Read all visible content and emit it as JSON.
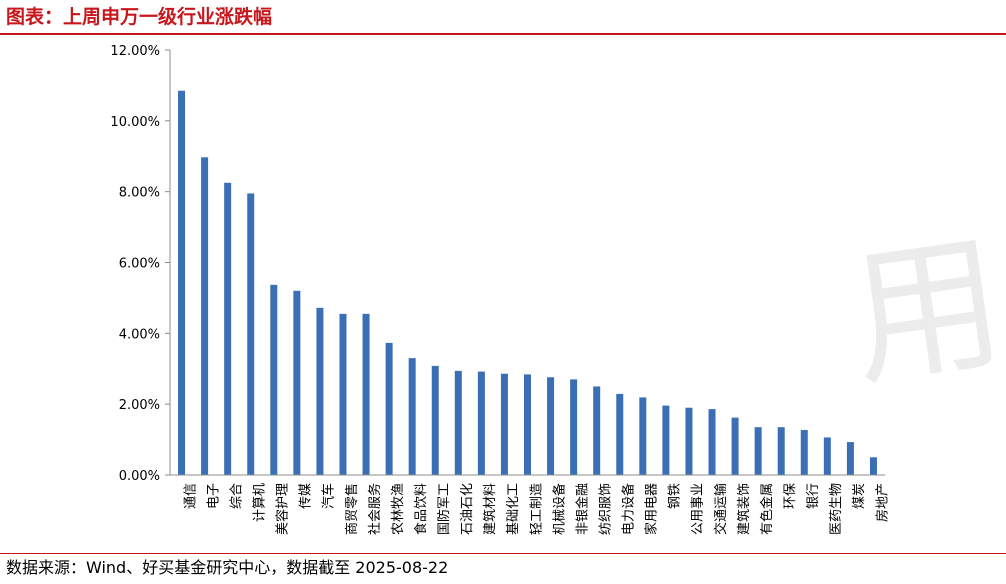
{
  "header": {
    "title": "图表：上周申万一级行业涨跌幅"
  },
  "footer": {
    "source": "数据来源：Wind、好买基金研究中心，数据截至  2025-08-22"
  },
  "watermark": {
    "text": "用"
  },
  "colors": {
    "bar": "#3a6fb5",
    "accent": "#c8161d",
    "axis": "#8c8c8c"
  },
  "chart_data": {
    "type": "bar",
    "title": "",
    "xlabel": "",
    "ylabel": "",
    "ylim": [
      0,
      12
    ],
    "yticks": [
      0,
      2,
      4,
      6,
      8,
      10,
      12
    ],
    "ytick_labels": [
      "0.00%",
      "2.00%",
      "4.00%",
      "6.00%",
      "8.00%",
      "10.00%",
      "12.00%"
    ],
    "grid": false,
    "legend": "none",
    "categories": [
      "通信",
      "电子",
      "综合",
      "计算机",
      "美容护理",
      "传媒",
      "汽车",
      "商贸零售",
      "社会服务",
      "农林牧渔",
      "食品饮料",
      "国防军工",
      "石油石化",
      "建筑材料",
      "基础化工",
      "轻工制造",
      "机械设备",
      "非银金融",
      "纺织服饰",
      "电力设备",
      "家用电器",
      "钢铁",
      "公用事业",
      "交通运输",
      "建筑装饰",
      "有色金属",
      "环保",
      "银行",
      "医药生物",
      "煤炭",
      "房地产"
    ],
    "values": [
      10.85,
      8.97,
      8.25,
      7.95,
      5.37,
      5.2,
      4.72,
      4.55,
      4.55,
      3.73,
      3.3,
      3.08,
      2.94,
      2.92,
      2.86,
      2.84,
      2.76,
      2.7,
      2.5,
      2.29,
      2.19,
      1.96,
      1.9,
      1.86,
      1.62,
      1.35,
      1.35,
      1.27,
      1.06,
      0.93,
      0.5
    ]
  }
}
